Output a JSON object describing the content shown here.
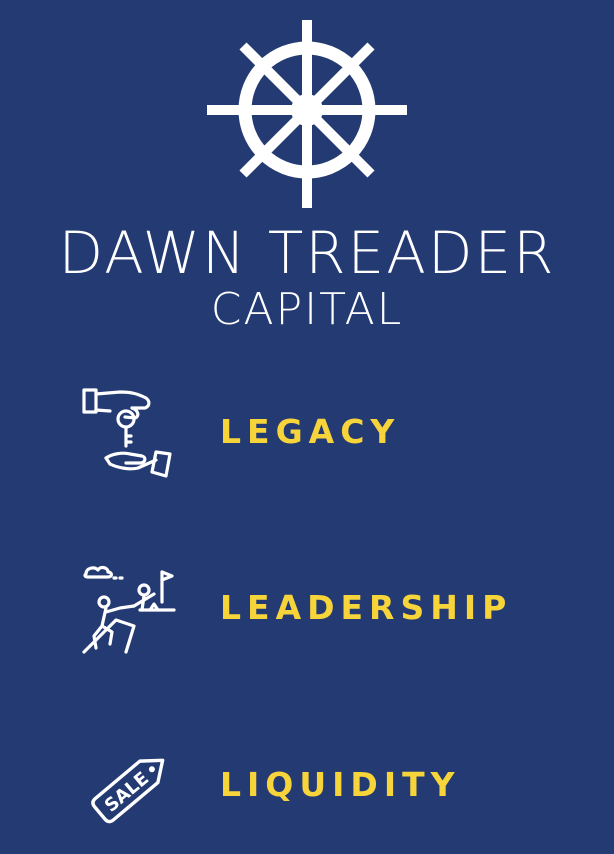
{
  "brand": {
    "title": "DAWN TREADER",
    "subtitle": "CAPITAL",
    "logo_icon": "ship-wheel-icon"
  },
  "colors": {
    "background": "#243a73",
    "accent": "#f7d43a",
    "text": "#ffffff"
  },
  "values": [
    {
      "label": "LEGACY",
      "icon": "handing-over-key-icon"
    },
    {
      "label": "LEADERSHIP",
      "icon": "climbers-summit-flag-icon"
    },
    {
      "label": "LIQUIDITY",
      "icon": "sale-tag-icon",
      "icon_text": "SALE"
    }
  ]
}
